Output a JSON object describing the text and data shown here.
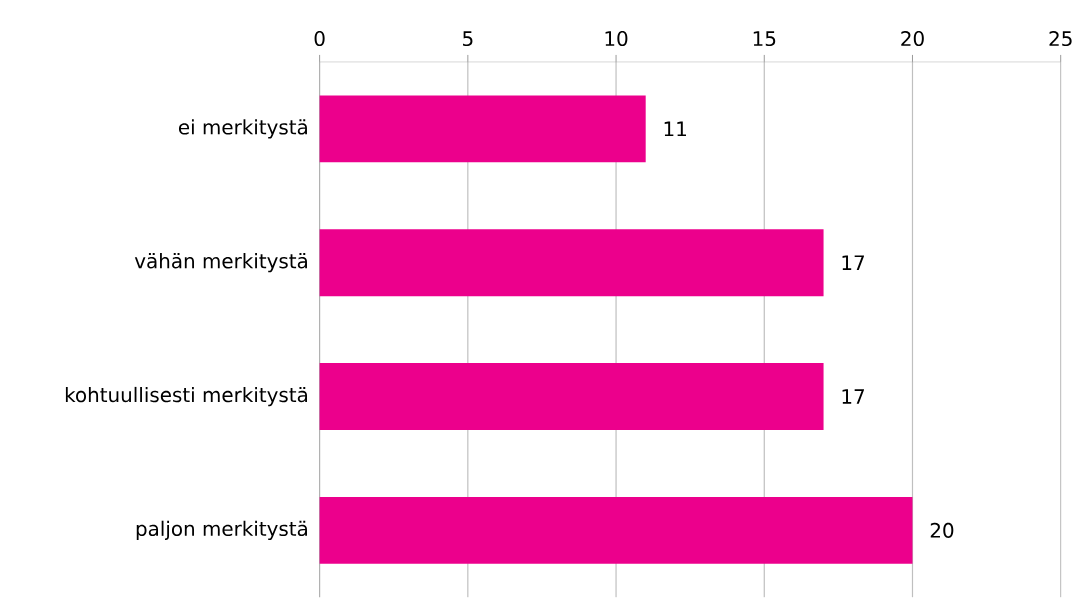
{
  "chart_data": {
    "type": "bar",
    "orientation": "horizontal",
    "categories": [
      "ei merkitystä",
      "vähän merkitystä",
      "kohtuullisesti merkitystä",
      "paljon merkitystä"
    ],
    "values": [
      11,
      17,
      17,
      20
    ],
    "color": "#ec008c",
    "xlim": [
      0,
      25
    ],
    "xticks": [
      0,
      5,
      10,
      15,
      20,
      25
    ],
    "grid": "x",
    "data_labels": true
  }
}
